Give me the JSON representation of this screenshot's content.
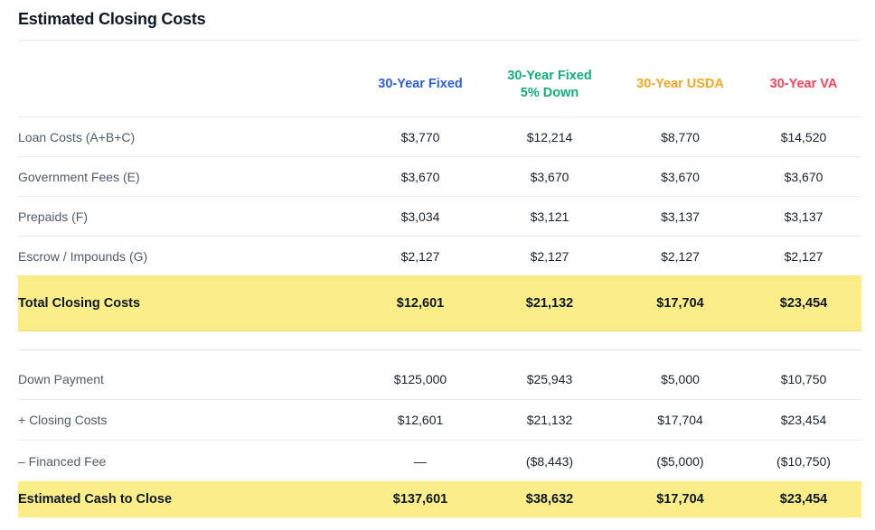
{
  "title": "Estimated Closing Costs",
  "columns": [
    {
      "label": "30-Year Fixed",
      "sub": "",
      "color": "#2C5FE8"
    },
    {
      "label": "30-Year Fixed",
      "sub": "5% Down",
      "color": "#12AE7E"
    },
    {
      "label": "30-Year USDA",
      "sub": "",
      "color": "#F9A51F"
    },
    {
      "label": "30-Year VA",
      "sub": "",
      "color": "#F4435C"
    }
  ],
  "closing_costs": {
    "rows": [
      {
        "label": "Loan Costs (A+B+C)",
        "values": [
          "$3,770",
          "$12,214",
          "$8,770",
          "$14,520"
        ]
      },
      {
        "label": "Government Fees (E)",
        "values": [
          "$3,670",
          "$3,670",
          "$3,670",
          "$3,670"
        ]
      },
      {
        "label": "Prepaids (F)",
        "values": [
          "$3,034",
          "$3,121",
          "$3,137",
          "$3,137"
        ]
      },
      {
        "label": "Escrow / Impounds (G)",
        "values": [
          "$2,127",
          "$2,127",
          "$2,127",
          "$2,127"
        ]
      }
    ],
    "total": {
      "label": "Total Closing Costs",
      "values": [
        "$12,601",
        "$21,132",
        "$17,704",
        "$23,454"
      ]
    }
  },
  "cash_to_close": {
    "rows": [
      {
        "label": "Down Payment",
        "values": [
          "$125,000",
          "$25,943",
          "$5,000",
          "$10,750"
        ]
      },
      {
        "label": "+ Closing Costs",
        "values": [
          "$12,601",
          "$21,132",
          "$17,704",
          "$23,454"
        ]
      },
      {
        "label": "– Financed Fee",
        "values": [
          "—",
          "($8,443)",
          "($5,000)",
          "($10,750)"
        ]
      }
    ],
    "total": {
      "label": "Estimated Cash to Close",
      "values": [
        "$137,601",
        "$38,632",
        "$17,704",
        "$23,454"
      ]
    }
  },
  "highlight_color": "#FBEE89"
}
